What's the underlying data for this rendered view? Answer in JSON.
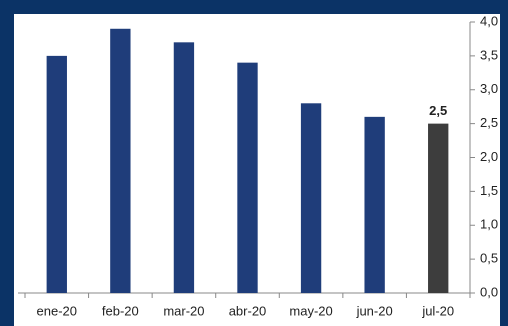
{
  "chart_data": {
    "type": "bar",
    "categories": [
      "ene-20",
      "feb-20",
      "mar-20",
      "abr-20",
      "may-20",
      "jun-20",
      "jul-20"
    ],
    "values": [
      3.5,
      3.9,
      3.7,
      3.4,
      2.8,
      2.6,
      2.5
    ],
    "value_labels": [
      null,
      null,
      null,
      null,
      null,
      null,
      "2,5"
    ],
    "colors": [
      "#1f3d7a",
      "#1f3d7a",
      "#1f3d7a",
      "#1f3d7a",
      "#1f3d7a",
      "#1f3d7a",
      "#3d3d3d"
    ],
    "ylim": [
      0,
      4
    ],
    "yticks": [
      {
        "value": 0,
        "label": "0,0"
      },
      {
        "value": 0.5,
        "label": "0,5"
      },
      {
        "value": 1,
        "label": "1,0"
      },
      {
        "value": 1.5,
        "label": "1,5"
      },
      {
        "value": 2,
        "label": "2,0"
      },
      {
        "value": 2.5,
        "label": "2,5"
      },
      {
        "value": 3,
        "label": "3,0"
      },
      {
        "value": 3.5,
        "label": "3,5"
      },
      {
        "value": 4,
        "label": "4,0"
      }
    ],
    "y_axis_side": "right",
    "grid": false
  }
}
